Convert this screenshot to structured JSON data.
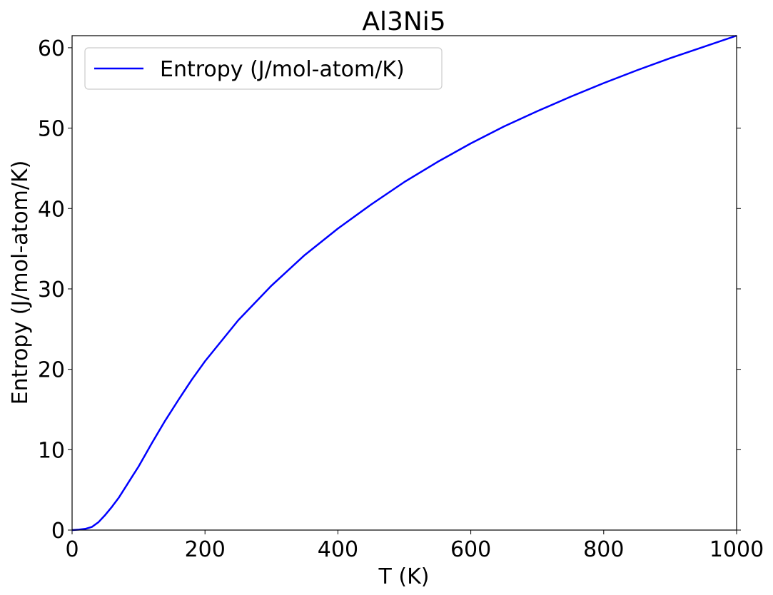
{
  "chart_data": {
    "type": "line",
    "title": "Al3Ni5",
    "xlabel": "T (K)",
    "ylabel": "Entropy (J/mol-atom/K)",
    "xlim": [
      0,
      1000
    ],
    "ylim": [
      0,
      61.5
    ],
    "x_ticks": [
      "0",
      "200",
      "400",
      "600",
      "800",
      "1000"
    ],
    "y_ticks": [
      "0",
      "10",
      "20",
      "30",
      "40",
      "50",
      "60"
    ],
    "grid": false,
    "legend_placement": "top-left",
    "series": [
      {
        "name": "Entropy (J/mol-atom/K)",
        "color": "#0000ff",
        "x": [
          0,
          10,
          20,
          30,
          40,
          50,
          60,
          70,
          80,
          90,
          100,
          120,
          140,
          160,
          180,
          200,
          250,
          300,
          350,
          400,
          450,
          500,
          550,
          600,
          650,
          700,
          750,
          800,
          850,
          900,
          950,
          1000
        ],
        "y": [
          0,
          0.05,
          0.15,
          0.4,
          1.0,
          1.9,
          2.9,
          4.0,
          5.3,
          6.6,
          7.9,
          10.8,
          13.6,
          16.2,
          18.7,
          21.0,
          26.1,
          30.4,
          34.2,
          37.5,
          40.5,
          43.3,
          45.8,
          48.1,
          50.2,
          52.1,
          53.9,
          55.6,
          57.2,
          58.7,
          60.1,
          61.5
        ]
      }
    ]
  },
  "colors": {
    "series_line": "#0000ff",
    "axes": "#000000",
    "legend_border": "#cccccc"
  }
}
